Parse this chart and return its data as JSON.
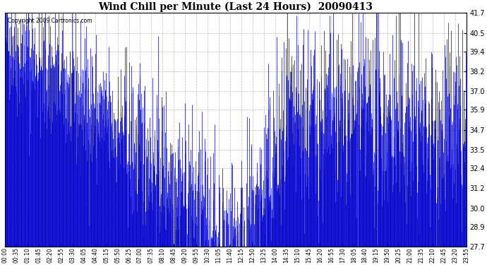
{
  "title": "Wind Chill per Minute (Last 24 Hours)  20090413",
  "copyright_text": "Copyright 2009 Cartronics.com",
  "line_color": "#0000CC",
  "bg_color": "#FFFFFF",
  "plot_bg_color": "#FFFFFF",
  "grid_color": "#BBBBBB",
  "yticks": [
    27.7,
    28.9,
    30.0,
    31.2,
    32.4,
    33.5,
    34.7,
    35.9,
    37.0,
    38.2,
    39.4,
    40.5,
    41.7
  ],
  "ylim": [
    27.7,
    41.7
  ],
  "xtick_labels": [
    "00:00",
    "00:35",
    "01:10",
    "01:45",
    "02:20",
    "02:55",
    "03:30",
    "04:05",
    "04:40",
    "05:15",
    "05:50",
    "06:25",
    "07:00",
    "07:35",
    "08:10",
    "08:45",
    "09:20",
    "09:55",
    "10:30",
    "11:05",
    "11:40",
    "12:15",
    "12:50",
    "13:25",
    "14:00",
    "14:35",
    "15:10",
    "15:45",
    "16:20",
    "16:55",
    "17:30",
    "18:05",
    "18:40",
    "19:15",
    "19:50",
    "20:25",
    "21:00",
    "21:35",
    "22:10",
    "22:45",
    "23:20",
    "23:55"
  ],
  "seed": 42,
  "n_points": 1440,
  "line_width": 0.5,
  "figwidth": 6.9,
  "figheight": 3.75,
  "dpi": 100
}
